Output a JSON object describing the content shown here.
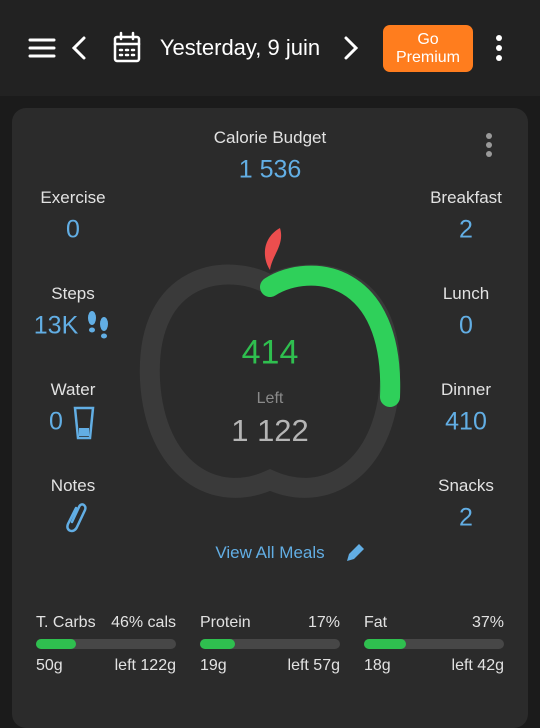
{
  "header": {
    "date": "Yesterday, 9 juin",
    "premium": [
      "Go",
      "Premium"
    ]
  },
  "summary": {
    "budget_label": "Calorie Budget",
    "budget": "1 536",
    "consumed": "414",
    "left_label": "Left",
    "left": "1 122",
    "view_all": "View All Meals"
  },
  "left_stats": [
    {
      "label": "Exercise",
      "value": "0"
    },
    {
      "label": "Steps",
      "value": "13K"
    },
    {
      "label": "Water",
      "value": "0"
    },
    {
      "label": "Notes"
    }
  ],
  "right_stats": [
    {
      "label": "Breakfast",
      "value": "2"
    },
    {
      "label": "Lunch",
      "value": "0"
    },
    {
      "label": "Dinner",
      "value": "410"
    },
    {
      "label": "Snacks",
      "value": "2"
    }
  ],
  "macros": [
    {
      "name": "T. Carbs",
      "share": "46% cals",
      "amount": "50g",
      "left": "left 122g"
    },
    {
      "name": "Protein",
      "share": "17%",
      "amount": "19g",
      "left": "left 57g"
    },
    {
      "name": "Fat",
      "share": "37%",
      "amount": "18g",
      "left": "left 42g"
    }
  ]
}
